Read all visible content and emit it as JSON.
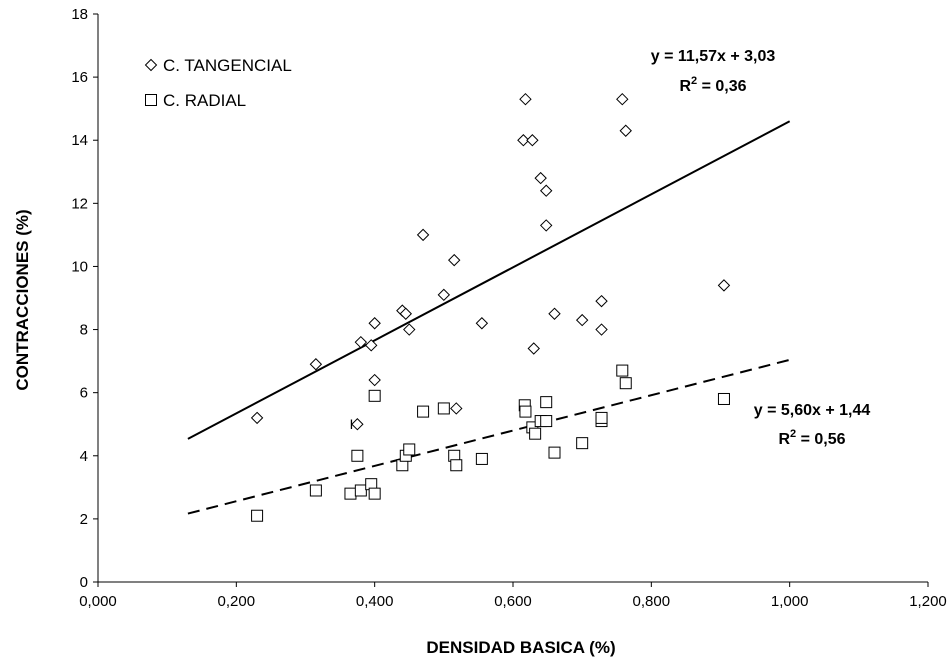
{
  "chart_data": {
    "type": "scatter",
    "xlabel": "DENSIDAD BASICA (%)",
    "ylabel": "CONTRACCIONES (%)",
    "xlim": [
      0,
      1.2
    ],
    "ylim": [
      0,
      18
    ],
    "x_ticks": [
      "0,000",
      "0,200",
      "0,400",
      "0,600",
      "0,800",
      "1,000",
      "1,200"
    ],
    "y_ticks": [
      "0",
      "2",
      "4",
      "6",
      "8",
      "10",
      "12",
      "14",
      "16",
      "18"
    ],
    "grid": false,
    "legend_position": "top-left",
    "series": [
      {
        "name": "C. TANGENCIAL",
        "marker": "diamond",
        "points": [
          [
            0.23,
            5.2
          ],
          [
            0.315,
            6.9
          ],
          [
            0.375,
            5.0
          ],
          [
            0.38,
            7.6
          ],
          [
            0.395,
            7.5
          ],
          [
            0.4,
            8.2
          ],
          [
            0.4,
            6.4
          ],
          [
            0.44,
            8.6
          ],
          [
            0.445,
            8.5
          ],
          [
            0.45,
            8.0
          ],
          [
            0.47,
            11.0
          ],
          [
            0.5,
            9.1
          ],
          [
            0.515,
            10.2
          ],
          [
            0.518,
            5.5
          ],
          [
            0.555,
            8.2
          ],
          [
            0.615,
            14.0
          ],
          [
            0.618,
            15.3
          ],
          [
            0.628,
            14.0
          ],
          [
            0.63,
            7.4
          ],
          [
            0.64,
            12.8
          ],
          [
            0.648,
            12.4
          ],
          [
            0.648,
            11.3
          ],
          [
            0.66,
            8.5
          ],
          [
            0.7,
            8.3
          ],
          [
            0.728,
            8.9
          ],
          [
            0.728,
            8.0
          ],
          [
            0.758,
            15.3
          ],
          [
            0.763,
            14.3
          ],
          [
            0.905,
            9.4
          ]
        ],
        "trendline": {
          "slope": 11.57,
          "intercept": 3.03,
          "x_range": [
            0.13,
            1.0
          ],
          "style": "solid"
        },
        "equation": "y = 11,57x + 3,03",
        "r2": "R² = 0,36"
      },
      {
        "name": "C. RADIAL",
        "marker": "square",
        "points": [
          [
            0.23,
            2.1
          ],
          [
            0.315,
            2.9
          ],
          [
            0.365,
            2.8
          ],
          [
            0.375,
            4.0
          ],
          [
            0.38,
            2.9
          ],
          [
            0.395,
            3.1
          ],
          [
            0.4,
            2.8
          ],
          [
            0.4,
            5.9
          ],
          [
            0.44,
            3.7
          ],
          [
            0.445,
            4.0
          ],
          [
            0.45,
            4.2
          ],
          [
            0.47,
            5.4
          ],
          [
            0.5,
            5.5
          ],
          [
            0.515,
            4.0
          ],
          [
            0.518,
            3.7
          ],
          [
            0.555,
            3.9
          ],
          [
            0.617,
            5.6
          ],
          [
            0.618,
            5.4
          ],
          [
            0.628,
            4.9
          ],
          [
            0.632,
            4.7
          ],
          [
            0.64,
            5.1
          ],
          [
            0.648,
            5.7
          ],
          [
            0.648,
            5.1
          ],
          [
            0.66,
            4.1
          ],
          [
            0.7,
            4.4
          ],
          [
            0.728,
            5.1
          ],
          [
            0.728,
            5.2
          ],
          [
            0.758,
            6.7
          ],
          [
            0.763,
            6.3
          ],
          [
            0.905,
            5.8
          ]
        ],
        "trendline": {
          "slope": 5.6,
          "intercept": 1.44,
          "x_range": [
            0.13,
            1.0
          ],
          "style": "dashed"
        },
        "equation": "y = 5,60x + 1,44",
        "r2": "R² = 0,56"
      }
    ],
    "annotations": [
      {
        "text": "I",
        "x": 0.368,
        "y": 5.0
      }
    ]
  }
}
